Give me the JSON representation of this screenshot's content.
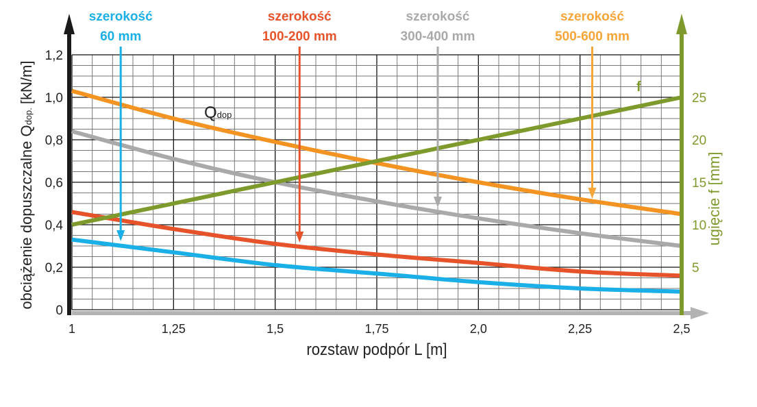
{
  "chart_data": {
    "type": "line",
    "xlabel": "rozstaw podpór L [m]",
    "ylabel_main": "obciążenie dopuszczalne Q",
    "ylabel_sub": "dop.",
    "ylabel_unit": "[kN/m]",
    "y2label": "ugięcie f [mm]",
    "xlim": [
      1,
      2.5
    ],
    "ylim": [
      0,
      1.2
    ],
    "y2lim": [
      0,
      30
    ],
    "grid": true,
    "x_ticks": [
      "1",
      "1,25",
      "1,5",
      "1,75",
      "2,0",
      "2,25",
      "2,5"
    ],
    "x_tick_values": [
      1,
      1.25,
      1.5,
      1.75,
      2.0,
      2.25,
      2.5
    ],
    "y_ticks": [
      "0",
      "0,2",
      "0,4",
      "0,6",
      "0,8",
      "1,0",
      "1,2"
    ],
    "y_tick_values": [
      0,
      0.2,
      0.4,
      0.6,
      0.8,
      1.0,
      1.2
    ],
    "y2_ticks": [
      "5",
      "10",
      "15",
      "20",
      "25"
    ],
    "y2_tick_values": [
      5,
      10,
      15,
      20,
      25
    ],
    "x": [
      1,
      1.25,
      1.5,
      1.75,
      2.0,
      2.25,
      2.5
    ],
    "series": [
      {
        "axis": "left",
        "color": "#f39322",
        "values": [
          1.03,
          0.9,
          0.79,
          0.69,
          0.6,
          0.52,
          0.45
        ]
      },
      {
        "axis": "left",
        "color": "#a9a9a9",
        "values": [
          0.84,
          0.71,
          0.6,
          0.51,
          0.43,
          0.36,
          0.3
        ]
      },
      {
        "axis": "left",
        "color": "#e6532b",
        "values": [
          0.46,
          0.38,
          0.31,
          0.26,
          0.22,
          0.18,
          0.16
        ]
      },
      {
        "axis": "left",
        "color": "#1aafe6",
        "values": [
          0.33,
          0.27,
          0.21,
          0.17,
          0.13,
          0.1,
          0.085
        ]
      },
      {
        "axis": "right",
        "name": "f",
        "color": "#7f9a2c",
        "values": [
          10,
          12.5,
          15,
          17.5,
          20,
          22.5,
          25
        ]
      }
    ],
    "q_label_main": "Q",
    "q_label_sub": "dop",
    "annotations": [
      {
        "line1": "szerokość",
        "line2": "60 mm",
        "color": "#1aafe6",
        "x": 1.12
      },
      {
        "line1": "szerokość",
        "line2": "100-200 mm",
        "color": "#e6532b",
        "x": 1.56
      },
      {
        "line1": "szerokość",
        "line2": "300-400 mm",
        "color": "#a9a9a9",
        "x": 1.9
      },
      {
        "line1": "szerokość",
        "line2": "500-600 mm",
        "color": "#f7a538",
        "x": 2.28
      }
    ]
  }
}
